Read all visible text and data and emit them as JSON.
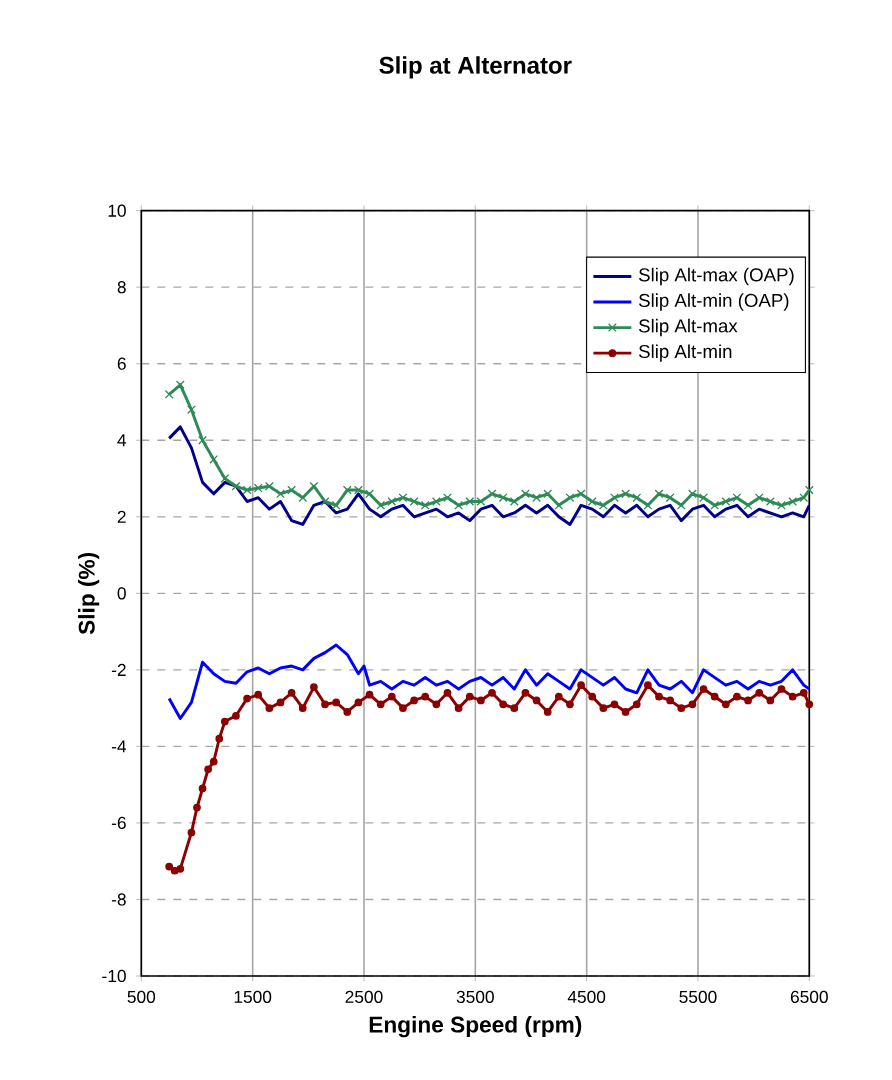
{
  "chart_data": {
    "type": "line",
    "title": "Slip at Alternator",
    "xlabel": "Engine Speed (rpm)",
    "ylabel": "Slip (%)",
    "xlim": [
      500,
      6500
    ],
    "xticks": [
      500,
      1500,
      2500,
      3500,
      4500,
      5500,
      6500
    ],
    "ylim": [
      -10,
      10
    ],
    "yticks": [
      -10,
      -8,
      -6,
      -4,
      -2,
      0,
      2,
      4,
      6,
      8,
      10
    ],
    "grid": true,
    "legend": "top right",
    "line_style": "solid",
    "series": [
      {
        "name": "Slip Alt-max (OAP)",
        "color": "#00008b",
        "marker": "none",
        "x": [
          750,
          850,
          950,
          1050,
          1150,
          1250,
          1350,
          1450,
          1550,
          1650,
          1750,
          1850,
          1950,
          2050,
          2150,
          2250,
          2350,
          2450,
          2550,
          2650,
          2750,
          2850,
          2950,
          3050,
          3150,
          3250,
          3350,
          3450,
          3550,
          3650,
          3750,
          3850,
          3950,
          4050,
          4150,
          4250,
          4350,
          4450,
          4550,
          4650,
          4750,
          4850,
          4950,
          5050,
          5150,
          5250,
          5350,
          5450,
          5550,
          5650,
          5750,
          5850,
          5950,
          6050,
          6150,
          6250,
          6350,
          6450,
          6500
        ],
        "values": [
          4.05,
          4.35,
          3.8,
          2.9,
          2.6,
          2.9,
          2.8,
          2.4,
          2.5,
          2.2,
          2.4,
          1.9,
          1.8,
          2.3,
          2.4,
          2.1,
          2.2,
          2.6,
          2.2,
          2.0,
          2.2,
          2.3,
          2.0,
          2.1,
          2.2,
          2.0,
          2.1,
          1.9,
          2.2,
          2.3,
          2.0,
          2.1,
          2.3,
          2.1,
          2.3,
          2.0,
          1.8,
          2.3,
          2.2,
          2.0,
          2.3,
          2.1,
          2.3,
          2.0,
          2.2,
          2.3,
          1.9,
          2.2,
          2.3,
          2.0,
          2.2,
          2.3,
          2.0,
          2.2,
          2.1,
          2.0,
          2.1,
          2.0,
          2.3
        ]
      },
      {
        "name": "Slip Alt-min (OAP)",
        "color": "#0000ff",
        "marker": "none",
        "x": [
          750,
          850,
          950,
          1050,
          1150,
          1250,
          1350,
          1450,
          1550,
          1650,
          1750,
          1850,
          1950,
          2050,
          2150,
          2250,
          2350,
          2450,
          2500,
          2550,
          2650,
          2750,
          2850,
          2950,
          3050,
          3150,
          3250,
          3350,
          3450,
          3550,
          3650,
          3750,
          3850,
          3950,
          4050,
          4150,
          4250,
          4350,
          4450,
          4550,
          4650,
          4750,
          4850,
          4950,
          5050,
          5150,
          5250,
          5350,
          5450,
          5550,
          5650,
          5750,
          5850,
          5950,
          6050,
          6150,
          6250,
          6350,
          6450,
          6500
        ],
        "values": [
          -2.75,
          -3.27,
          -2.85,
          -1.8,
          -2.1,
          -2.3,
          -2.35,
          -2.05,
          -1.95,
          -2.1,
          -1.95,
          -1.9,
          -2.0,
          -1.7,
          -1.55,
          -1.35,
          -1.6,
          -2.1,
          -1.9,
          -2.4,
          -2.3,
          -2.5,
          -2.3,
          -2.4,
          -2.2,
          -2.4,
          -2.3,
          -2.5,
          -2.3,
          -2.2,
          -2.4,
          -2.2,
          -2.5,
          -2.0,
          -2.4,
          -2.1,
          -2.3,
          -2.5,
          -2.0,
          -2.2,
          -2.4,
          -2.2,
          -2.5,
          -2.6,
          -2.0,
          -2.4,
          -2.5,
          -2.3,
          -2.6,
          -2.0,
          -2.2,
          -2.4,
          -2.3,
          -2.5,
          -2.3,
          -2.4,
          -2.3,
          -2.0,
          -2.4,
          -2.5
        ]
      },
      {
        "name": "Slip Alt-max",
        "color": "#2e8b57",
        "marker": "cross",
        "x": [
          750,
          850,
          950,
          1050,
          1150,
          1250,
          1350,
          1450,
          1550,
          1650,
          1750,
          1850,
          1950,
          2050,
          2150,
          2250,
          2350,
          2450,
          2550,
          2650,
          2750,
          2850,
          2950,
          3050,
          3150,
          3250,
          3350,
          3450,
          3550,
          3650,
          3750,
          3850,
          3950,
          4050,
          4150,
          4250,
          4350,
          4450,
          4550,
          4650,
          4750,
          4850,
          4950,
          5050,
          5150,
          5250,
          5350,
          5450,
          5550,
          5650,
          5750,
          5850,
          5950,
          6050,
          6150,
          6250,
          6350,
          6450,
          6500
        ],
        "values": [
          5.2,
          5.45,
          4.8,
          4.0,
          3.5,
          3.0,
          2.8,
          2.7,
          2.75,
          2.8,
          2.6,
          2.7,
          2.5,
          2.8,
          2.4,
          2.3,
          2.7,
          2.7,
          2.6,
          2.3,
          2.4,
          2.5,
          2.4,
          2.3,
          2.4,
          2.5,
          2.3,
          2.4,
          2.4,
          2.6,
          2.5,
          2.4,
          2.6,
          2.5,
          2.6,
          2.3,
          2.5,
          2.6,
          2.4,
          2.3,
          2.5,
          2.6,
          2.5,
          2.3,
          2.6,
          2.5,
          2.3,
          2.6,
          2.5,
          2.3,
          2.4,
          2.5,
          2.3,
          2.5,
          2.4,
          2.3,
          2.4,
          2.5,
          2.7
        ]
      },
      {
        "name": "Slip Alt-min",
        "color": "#8b0000",
        "marker": "circle",
        "x": [
          750,
          800,
          850,
          950,
          1000,
          1050,
          1100,
          1150,
          1200,
          1250,
          1350,
          1450,
          1550,
          1650,
          1750,
          1850,
          1950,
          2050,
          2150,
          2250,
          2350,
          2450,
          2550,
          2650,
          2750,
          2850,
          2950,
          3050,
          3150,
          3250,
          3350,
          3450,
          3550,
          3650,
          3750,
          3850,
          3950,
          4050,
          4150,
          4250,
          4350,
          4450,
          4550,
          4650,
          4750,
          4850,
          4950,
          5050,
          5150,
          5250,
          5350,
          5450,
          5550,
          5650,
          5750,
          5850,
          5950,
          6050,
          6150,
          6250,
          6350,
          6450,
          6500
        ],
        "values": [
          -7.14,
          -7.25,
          -7.2,
          -6.25,
          -5.6,
          -5.1,
          -4.6,
          -4.4,
          -3.8,
          -3.35,
          -3.2,
          -2.75,
          -2.65,
          -3.0,
          -2.85,
          -2.6,
          -3.0,
          -2.45,
          -2.9,
          -2.85,
          -3.1,
          -2.85,
          -2.65,
          -2.9,
          -2.7,
          -3.0,
          -2.8,
          -2.7,
          -2.9,
          -2.6,
          -3.0,
          -2.7,
          -2.8,
          -2.6,
          -2.9,
          -3.0,
          -2.6,
          -2.8,
          -3.1,
          -2.7,
          -2.9,
          -2.4,
          -2.7,
          -3.0,
          -2.9,
          -3.1,
          -2.9,
          -2.4,
          -2.7,
          -2.8,
          -3.0,
          -2.9,
          -2.5,
          -2.7,
          -2.9,
          -2.7,
          -2.8,
          -2.6,
          -2.8,
          -2.5,
          -2.7,
          -2.6,
          -2.9
        ]
      }
    ]
  }
}
